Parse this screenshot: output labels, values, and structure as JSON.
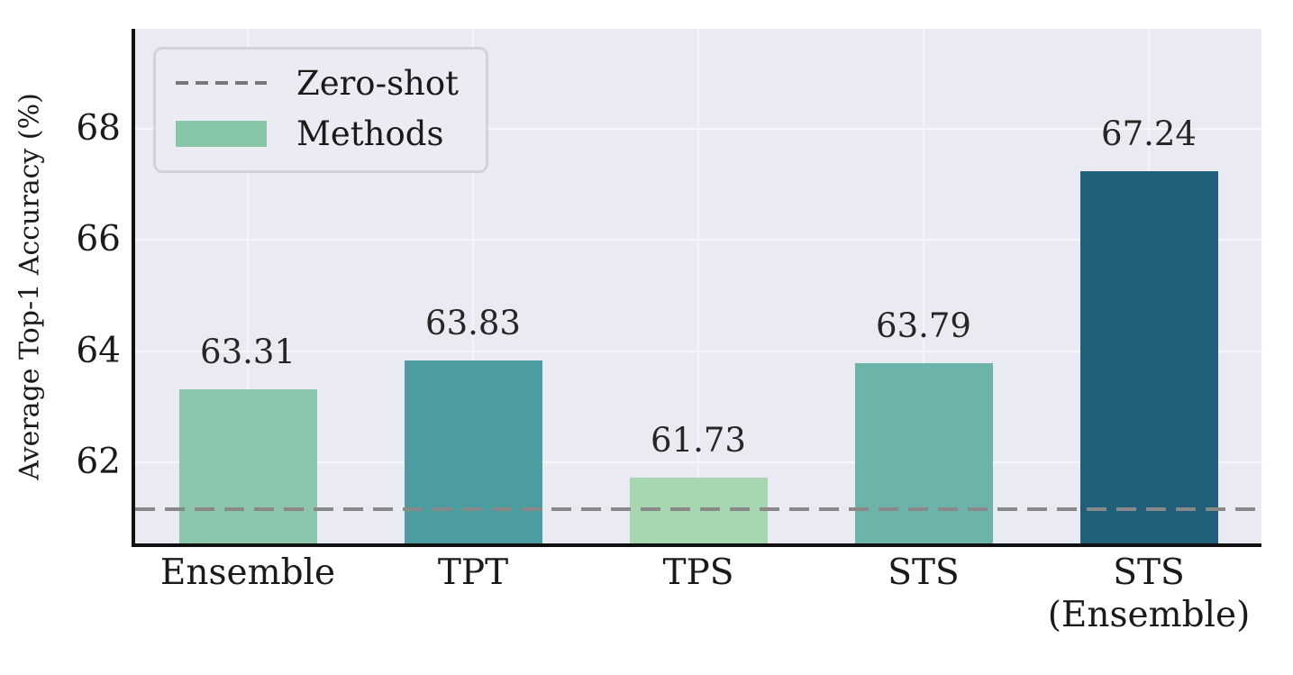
{
  "chart_data": {
    "type": "bar",
    "title": "",
    "xlabel": "",
    "ylabel": "Average Top-1 Accuracy (%)",
    "categories": [
      "Ensemble",
      "TPT",
      "TPS",
      "STS",
      "STS\n(Ensemble)"
    ],
    "values": [
      63.31,
      63.83,
      61.73,
      63.79,
      67.24
    ],
    "bar_labels": [
      "63.31",
      "63.83",
      "61.73",
      "63.79",
      "67.24"
    ],
    "bar_colors": [
      "#8bc5ac",
      "#4b9da0",
      "#a6d7b1",
      "#6cb4a9",
      "#20607a"
    ],
    "yticks": [
      "62",
      "64",
      "66",
      "68"
    ],
    "ylim": [
      60.54,
      69.8
    ],
    "grid": true,
    "plot_background": "#eaeaf2",
    "reference_line": {
      "label": "Zero-shot",
      "value": 61.15,
      "style": "dashed",
      "color": "#898989"
    },
    "legend_position": "upper-left"
  },
  "legend": {
    "items": [
      {
        "label": "Zero-shot",
        "type": "dashed-line",
        "color": "#898989"
      },
      {
        "label": "Methods",
        "type": "bar-swatch",
        "color": "#88c6a8"
      }
    ]
  }
}
